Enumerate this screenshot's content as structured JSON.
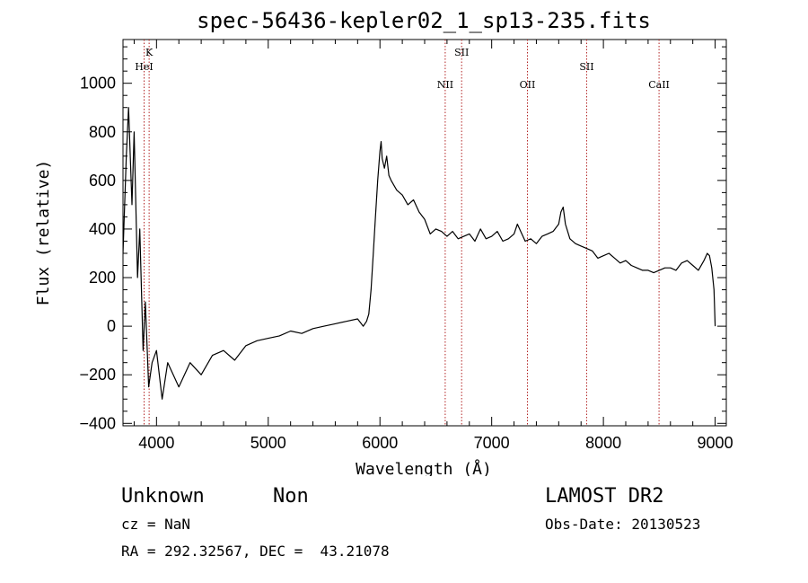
{
  "chart_data": {
    "type": "line",
    "title": "spec-56436-kepler02_1_sp13-235.fits",
    "xlabel": "Wavelength (Å)",
    "ylabel": "Flux (relative)",
    "xlim": [
      3700,
      9100
    ],
    "ylim": [
      -410,
      1180
    ],
    "x_ticks": [
      4000,
      5000,
      6000,
      7000,
      8000,
      9000
    ],
    "y_ticks": [
      -400,
      -200,
      0,
      200,
      400,
      600,
      800,
      1000
    ],
    "grid": false,
    "line_color": "#000000",
    "marker_color": "#b22222",
    "spectral_lines": [
      {
        "label": "K",
        "wavelength": 3934
      },
      {
        "label": "HeI",
        "wavelength": 3889
      },
      {
        "label": "NII",
        "wavelength": 6584
      },
      {
        "label": "SII",
        "wavelength": 6731
      },
      {
        "label": "OII",
        "wavelength": 7320
      },
      {
        "label": "SII",
        "wavelength": 7850
      },
      {
        "label": "CaII",
        "wavelength": 8498
      }
    ],
    "series": [
      {
        "x": [
          3700,
          3730,
          3750,
          3780,
          3800,
          3830,
          3850,
          3880,
          3900,
          3930,
          3960,
          4000,
          4050,
          4100,
          4150,
          4200,
          4300,
          4400,
          4500,
          4600,
          4700,
          4800,
          4900,
          5000,
          5100,
          5200,
          5300,
          5400,
          5500,
          5600,
          5700,
          5800,
          5850,
          5880,
          5900,
          5920,
          5940,
          5960,
          5980,
          6000,
          6010,
          6020,
          6040,
          6060,
          6080,
          6100,
          6150,
          6200,
          6250,
          6300,
          6350,
          6400,
          6450,
          6500,
          6550,
          6600,
          6650,
          6700,
          6750,
          6800,
          6850,
          6900,
          6950,
          7000,
          7050,
          7100,
          7150,
          7200,
          7230,
          7260,
          7300,
          7350,
          7400,
          7450,
          7500,
          7550,
          7600,
          7620,
          7640,
          7660,
          7700,
          7750,
          7800,
          7850,
          7900,
          7950,
          8000,
          8050,
          8100,
          8150,
          8200,
          8250,
          8300,
          8350,
          8400,
          8450,
          8500,
          8550,
          8600,
          8650,
          8700,
          8750,
          8800,
          8850,
          8900,
          8930,
          8950,
          8970,
          8990,
          9000
        ],
        "y": [
          300,
          700,
          900,
          500,
          800,
          200,
          400,
          -100,
          100,
          -250,
          -150,
          -100,
          -300,
          -150,
          -200,
          -250,
          -150,
          -200,
          -120,
          -100,
          -140,
          -80,
          -60,
          -50,
          -40,
          -20,
          -30,
          -10,
          0,
          10,
          20,
          30,
          0,
          20,
          50,
          150,
          300,
          450,
          600,
          720,
          760,
          690,
          650,
          700,
          620,
          600,
          560,
          540,
          500,
          520,
          470,
          440,
          380,
          400,
          390,
          370,
          390,
          360,
          370,
          380,
          350,
          400,
          360,
          370,
          390,
          350,
          360,
          380,
          420,
          390,
          350,
          360,
          340,
          370,
          380,
          390,
          420,
          470,
          490,
          420,
          360,
          340,
          330,
          320,
          310,
          280,
          290,
          300,
          280,
          260,
          270,
          250,
          240,
          230,
          230,
          220,
          230,
          240,
          240,
          230,
          260,
          270,
          250,
          230,
          270,
          300,
          290,
          240,
          150,
          0
        ]
      }
    ]
  },
  "info": {
    "object_class": "Unknown",
    "object_subclass": "Non",
    "survey": "LAMOST DR2",
    "redshift": "cz = NaN",
    "obs_date": "Obs-Date: 20130523",
    "coords": "RA = 292.32567, DEC =  43.21078"
  }
}
